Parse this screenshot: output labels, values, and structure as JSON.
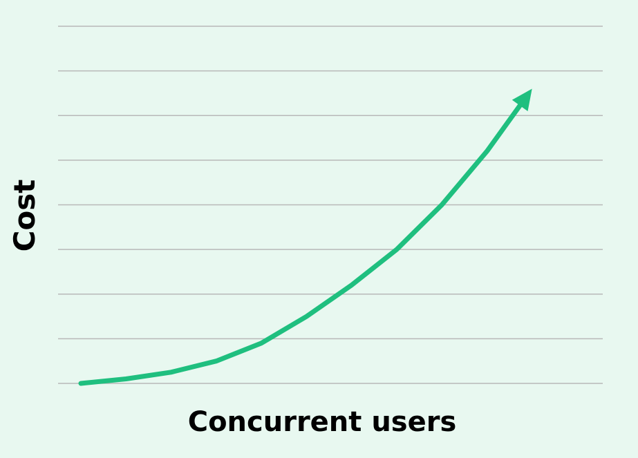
{
  "chart_data": {
    "type": "line",
    "title": "",
    "xlabel": "Concurrent users",
    "ylabel": "Cost",
    "ylim": [
      0,
      8
    ],
    "xlim": [
      0,
      11
    ],
    "grid": true,
    "gridlines_y": [
      0,
      1,
      2,
      3,
      4,
      5,
      6,
      7,
      8
    ],
    "series": [
      {
        "name": "",
        "x": [
          0,
          1,
          2,
          3,
          4,
          5,
          6,
          7,
          8,
          9,
          10
        ],
        "y": [
          0,
          0.1,
          0.25,
          0.5,
          0.9,
          1.5,
          2.2,
          3.0,
          4.0,
          5.2,
          6.6
        ],
        "arrow_end": true
      }
    ]
  },
  "colors": {
    "background": "#e8f8f0",
    "line": "#1fbf7f",
    "grid": "#b8b8b8",
    "text": "#000000"
  }
}
